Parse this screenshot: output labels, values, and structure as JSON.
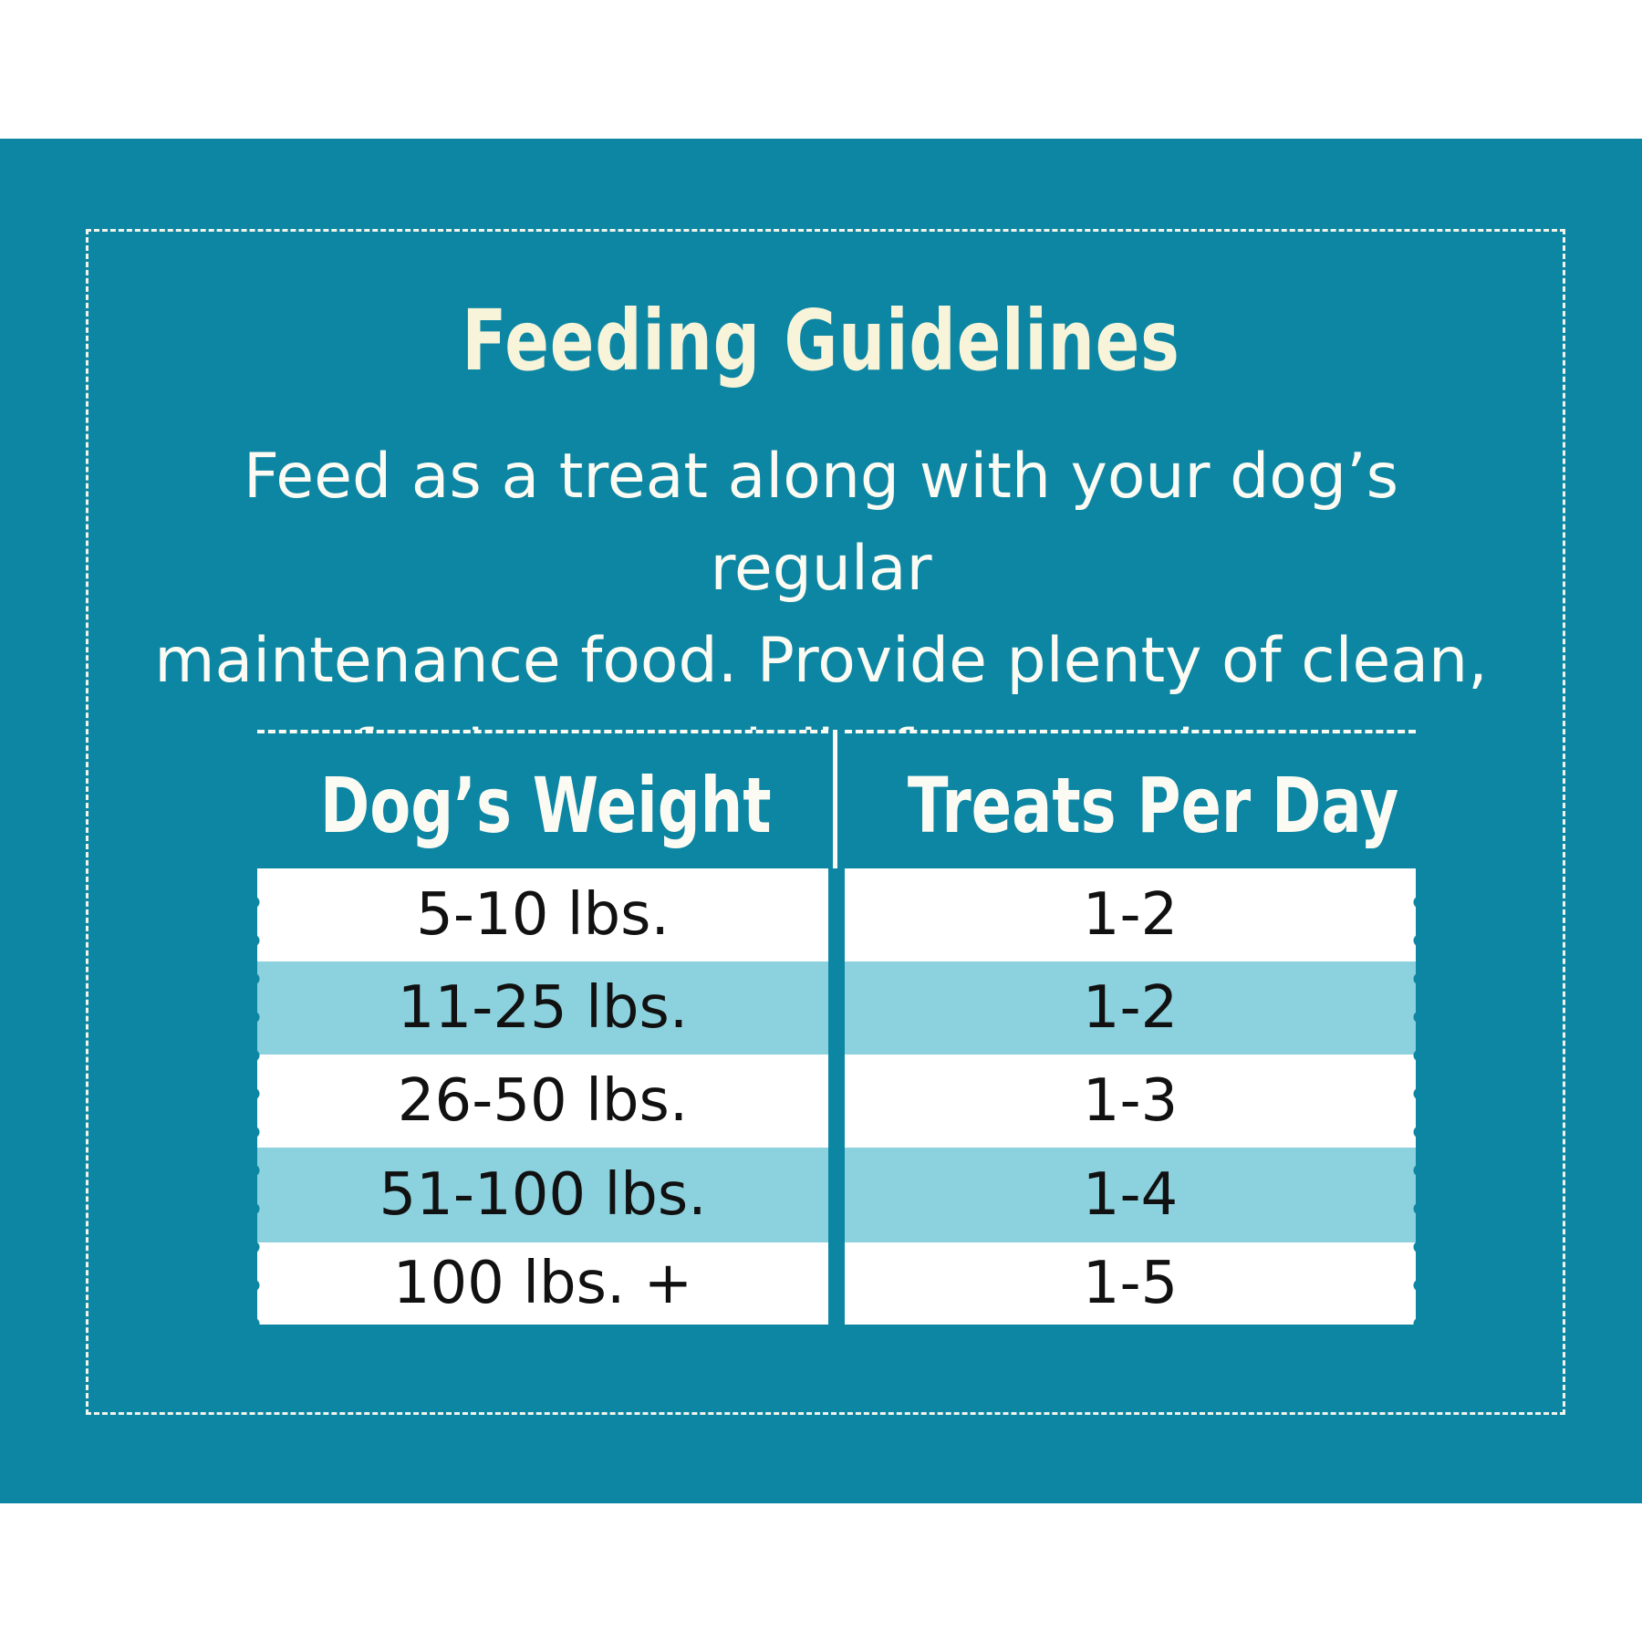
{
  "colors": {
    "background": "#ffffff",
    "panel": "#0d86a3",
    "title": "#f7f4d9",
    "text_light": "#fbfbf3",
    "row_white": "#ffffff",
    "row_blue": "#8cd1de",
    "row_text": "#111111"
  },
  "title": "Feeding Guidelines",
  "intro_lines": [
    "Feed as a treat along with your dog’s regular",
    "maintenance food. Provide plenty of clean,",
    "fresh water daily for your dog."
  ],
  "table": {
    "headers": [
      "Dog’s Weight",
      "Treats Per Day"
    ],
    "rows": [
      [
        "5-10 lbs.",
        "1-2"
      ],
      [
        "11-25 lbs.",
        "1-2"
      ],
      [
        "26-50 lbs.",
        "1-3"
      ],
      [
        "51-100 lbs.",
        "1-4"
      ],
      [
        "100 lbs. +",
        "1-5"
      ]
    ]
  }
}
